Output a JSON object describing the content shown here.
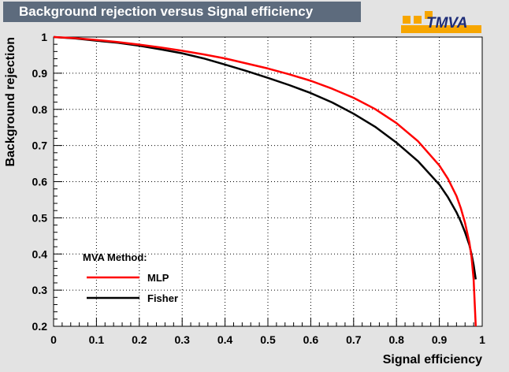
{
  "window": {
    "title": "Background rejection versus Signal efficiency"
  },
  "logo": {
    "text": "TMVA",
    "accent_color": "#f7a600",
    "text_color": "#1e2d78",
    "t_color": "#d40000"
  },
  "chart_data": {
    "type": "line",
    "title": "Background rejection versus Signal efficiency",
    "xlabel": "Signal efficiency",
    "ylabel": "Background rejection",
    "xlim": [
      0,
      1
    ],
    "ylim": [
      0.2,
      1
    ],
    "xticks": [
      "0",
      "0.1",
      "0.2",
      "0.3",
      "0.4",
      "0.5",
      "0.6",
      "0.7",
      "0.8",
      "0.9",
      "1"
    ],
    "yticks": [
      "0.2",
      "0.3",
      "0.4",
      "0.5",
      "0.6",
      "0.7",
      "0.8",
      "0.9",
      "1"
    ],
    "grid": true,
    "legend": {
      "title": "MVA Method:",
      "position": "bottom-left"
    },
    "series": [
      {
        "name": "MLP",
        "color": "#ff0000",
        "x": [
          0,
          0.05,
          0.1,
          0.15,
          0.2,
          0.25,
          0.3,
          0.35,
          0.4,
          0.45,
          0.5,
          0.55,
          0.6,
          0.65,
          0.7,
          0.75,
          0.8,
          0.85,
          0.9,
          0.92,
          0.94,
          0.95,
          0.96,
          0.97,
          0.975,
          0.98,
          0.985
        ],
        "y": [
          1.0,
          0.997,
          0.992,
          0.986,
          0.979,
          0.971,
          0.962,
          0.952,
          0.941,
          0.927,
          0.913,
          0.897,
          0.879,
          0.857,
          0.832,
          0.801,
          0.762,
          0.712,
          0.645,
          0.608,
          0.56,
          0.527,
          0.486,
          0.432,
          0.392,
          0.33,
          0.2
        ]
      },
      {
        "name": "Fisher",
        "color": "#000000",
        "x": [
          0,
          0.05,
          0.1,
          0.15,
          0.2,
          0.25,
          0.3,
          0.35,
          0.4,
          0.45,
          0.5,
          0.55,
          0.6,
          0.65,
          0.7,
          0.75,
          0.8,
          0.85,
          0.9,
          0.92,
          0.94,
          0.95,
          0.96,
          0.97,
          0.975,
          0.98,
          0.985
        ],
        "y": [
          1.0,
          0.996,
          0.99,
          0.984,
          0.976,
          0.966,
          0.955,
          0.941,
          0.924,
          0.906,
          0.887,
          0.867,
          0.845,
          0.819,
          0.788,
          0.752,
          0.708,
          0.657,
          0.592,
          0.557,
          0.515,
          0.49,
          0.46,
          0.425,
          0.4,
          0.37,
          0.33
        ]
      }
    ]
  }
}
